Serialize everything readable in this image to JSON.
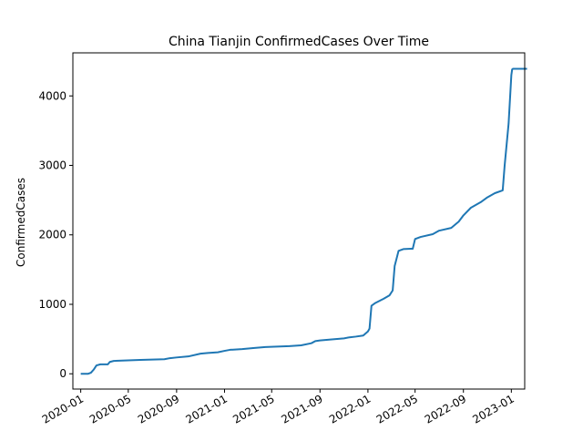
{
  "chart_data": {
    "type": "line",
    "title": "China Tianjin ConfirmedCases Over Time",
    "xlabel": "",
    "ylabel": "ConfirmedCases",
    "x_ticks": [
      "2020-01",
      "2020-05",
      "2020-09",
      "2021-01",
      "2021-05",
      "2021-09",
      "2022-01",
      "2022-05",
      "2022-09",
      "2023-01"
    ],
    "y_ticks": [
      0,
      1000,
      2000,
      3000,
      4000
    ],
    "xlim_days": [
      -20,
      1130
    ],
    "ylim": [
      -220,
      4620
    ],
    "grid": false,
    "colors": {
      "line": "#1f77b4",
      "axis": "#000000",
      "background": "#ffffff"
    },
    "series": [
      {
        "name": "ConfirmedCases",
        "x": [
          "2020-01-01",
          "2020-01-20",
          "2020-01-27",
          "2020-02-03",
          "2020-02-10",
          "2020-02-20",
          "2020-03-10",
          "2020-03-15",
          "2020-03-25",
          "2020-04-15",
          "2020-06-01",
          "2020-07-01",
          "2020-08-01",
          "2020-08-15",
          "2020-09-01",
          "2020-10-01",
          "2020-11-01",
          "2020-11-20",
          "2020-12-15",
          "2021-01-01",
          "2021-01-15",
          "2021-02-15",
          "2021-03-15",
          "2021-04-15",
          "2021-05-15",
          "2021-06-15",
          "2021-07-15",
          "2021-08-10",
          "2021-08-20",
          "2021-09-01",
          "2021-10-01",
          "2021-11-01",
          "2021-11-15",
          "2021-12-01",
          "2021-12-20",
          "2022-01-01",
          "2022-01-05",
          "2022-01-10",
          "2022-01-20",
          "2022-02-10",
          "2022-02-25",
          "2022-03-05",
          "2022-03-10",
          "2022-03-20",
          "2022-04-01",
          "2022-04-20",
          "2022-04-25",
          "2022-05-01",
          "2022-05-15",
          "2022-06-15",
          "2022-07-01",
          "2022-08-01",
          "2022-08-20",
          "2022-09-01",
          "2022-09-20",
          "2022-10-15",
          "2022-11-01",
          "2022-11-20",
          "2022-12-10",
          "2022-12-15",
          "2022-12-25",
          "2023-01-01",
          "2023-01-03",
          "2023-01-05",
          "2023-01-10",
          "2023-02-10"
        ],
        "y": [
          0,
          0,
          15,
          60,
          120,
          136,
          136,
          170,
          185,
          190,
          200,
          205,
          210,
          225,
          235,
          250,
          290,
          300,
          310,
          330,
          345,
          355,
          370,
          385,
          392,
          398,
          410,
          440,
          470,
          480,
          495,
          510,
          525,
          535,
          550,
          610,
          650,
          980,
          1020,
          1080,
          1130,
          1200,
          1550,
          1770,
          1795,
          1800,
          1800,
          1940,
          1970,
          2010,
          2060,
          2100,
          2190,
          2280,
          2390,
          2470,
          2540,
          2600,
          2640,
          3000,
          3600,
          4300,
          4380,
          4390,
          4390,
          4390
        ]
      }
    ]
  }
}
